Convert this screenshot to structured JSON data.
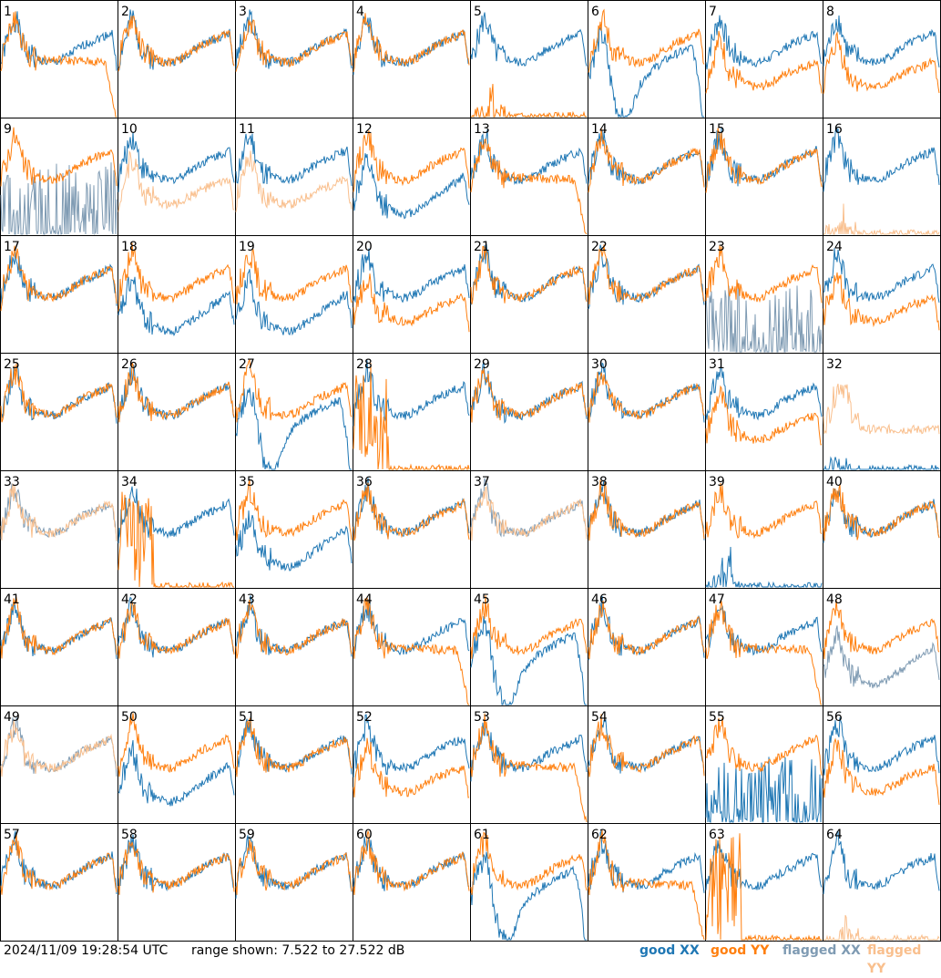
{
  "footer": {
    "timestamp": "2024/11/09 19:28:54 UTC",
    "range_text": "range shown: 7.522 to 27.522 dB"
  },
  "legend": [
    {
      "key": "good_xx",
      "label": "good XX",
      "color": "#1f77b4"
    },
    {
      "key": "good_yy",
      "label": "good YY",
      "color": "#ff7f0e"
    },
    {
      "key": "flagged_xx",
      "label": "flagged XX",
      "color": "#7f9bb3"
    },
    {
      "key": "flagged_yy",
      "label": "flagged YY",
      "color": "#f9bf8d"
    }
  ],
  "chart_data": {
    "type": "line",
    "title": "",
    "ylim": [
      7.522,
      27.522
    ],
    "y_unit": "dB",
    "grid": "8x8 small multiples",
    "panels": [
      {
        "id": 1,
        "xx": "good",
        "yy": "good",
        "shape": "yy_dropoff"
      },
      {
        "id": 2,
        "xx": "good",
        "yy": "good",
        "shape": "normal"
      },
      {
        "id": 3,
        "xx": "good",
        "yy": "good",
        "shape": "normal"
      },
      {
        "id": 4,
        "xx": "good",
        "yy": "good",
        "shape": "normal"
      },
      {
        "id": 5,
        "xx": "good",
        "yy": "good",
        "shape": "yy_low"
      },
      {
        "id": 6,
        "xx": "good",
        "yy": "good",
        "shape": "xx_dip"
      },
      {
        "id": 7,
        "xx": "good",
        "yy": "good",
        "shape": "yy_below"
      },
      {
        "id": 8,
        "xx": "good",
        "yy": "good",
        "shape": "yy_below"
      },
      {
        "id": 9,
        "xx": "flagged",
        "yy": "good",
        "shape": "xx_spikes"
      },
      {
        "id": 10,
        "xx": "good",
        "yy": "flagged",
        "shape": "yy_below"
      },
      {
        "id": 11,
        "xx": "good",
        "yy": "flagged",
        "shape": "yy_below"
      },
      {
        "id": 12,
        "xx": "good",
        "yy": "good",
        "shape": "xx_below"
      },
      {
        "id": 13,
        "xx": "good",
        "yy": "good",
        "shape": "yy_dropoff"
      },
      {
        "id": 14,
        "xx": "good",
        "yy": "good",
        "shape": "normal"
      },
      {
        "id": 15,
        "xx": "good",
        "yy": "good",
        "shape": "normal"
      },
      {
        "id": 16,
        "xx": "good",
        "yy": "flagged",
        "shape": "yy_low"
      },
      {
        "id": 17,
        "xx": "good",
        "yy": "good",
        "shape": "normal"
      },
      {
        "id": 18,
        "xx": "good",
        "yy": "good",
        "shape": "xx_below"
      },
      {
        "id": 19,
        "xx": "good",
        "yy": "good",
        "shape": "xx_below"
      },
      {
        "id": 20,
        "xx": "good",
        "yy": "good",
        "shape": "yy_below"
      },
      {
        "id": 21,
        "xx": "good",
        "yy": "good",
        "shape": "normal"
      },
      {
        "id": 22,
        "xx": "good",
        "yy": "good",
        "shape": "normal"
      },
      {
        "id": 23,
        "xx": "flagged",
        "yy": "good",
        "shape": "xx_spikes"
      },
      {
        "id": 24,
        "xx": "good",
        "yy": "good",
        "shape": "yy_below"
      },
      {
        "id": 25,
        "xx": "good",
        "yy": "good",
        "shape": "normal"
      },
      {
        "id": 26,
        "xx": "good",
        "yy": "good",
        "shape": "normal"
      },
      {
        "id": 27,
        "xx": "good",
        "yy": "good",
        "shape": "xx_dip"
      },
      {
        "id": 28,
        "xx": "good",
        "yy": "good",
        "shape": "yy_spikes"
      },
      {
        "id": 29,
        "xx": "good",
        "yy": "good",
        "shape": "normal"
      },
      {
        "id": 30,
        "xx": "good",
        "yy": "good",
        "shape": "normal"
      },
      {
        "id": 31,
        "xx": "good",
        "yy": "good",
        "shape": "yy_below"
      },
      {
        "id": 32,
        "xx": "good",
        "yy": "flagged",
        "shape": "yy_only"
      },
      {
        "id": 33,
        "xx": "flagged",
        "yy": "flagged",
        "shape": "normal"
      },
      {
        "id": 34,
        "xx": "good",
        "yy": "good",
        "shape": "yy_spikes"
      },
      {
        "id": 35,
        "xx": "good",
        "yy": "good",
        "shape": "xx_below"
      },
      {
        "id": 36,
        "xx": "good",
        "yy": "good",
        "shape": "normal"
      },
      {
        "id": 37,
        "xx": "flagged",
        "yy": "flagged",
        "shape": "normal"
      },
      {
        "id": 38,
        "xx": "good",
        "yy": "good",
        "shape": "normal"
      },
      {
        "id": 39,
        "xx": "good",
        "yy": "good",
        "shape": "xx_low"
      },
      {
        "id": 40,
        "xx": "good",
        "yy": "good",
        "shape": "normal"
      },
      {
        "id": 41,
        "xx": "good",
        "yy": "good",
        "shape": "normal"
      },
      {
        "id": 42,
        "xx": "good",
        "yy": "good",
        "shape": "normal"
      },
      {
        "id": 43,
        "xx": "good",
        "yy": "good",
        "shape": "normal"
      },
      {
        "id": 44,
        "xx": "good",
        "yy": "good",
        "shape": "yy_dropoff"
      },
      {
        "id": 45,
        "xx": "good",
        "yy": "good",
        "shape": "xx_dip"
      },
      {
        "id": 46,
        "xx": "good",
        "yy": "good",
        "shape": "normal"
      },
      {
        "id": 47,
        "xx": "good",
        "yy": "good",
        "shape": "yy_dropoff"
      },
      {
        "id": 48,
        "xx": "flagged",
        "yy": "good",
        "shape": "xx_below"
      },
      {
        "id": 49,
        "xx": "flagged",
        "yy": "flagged",
        "shape": "normal"
      },
      {
        "id": 50,
        "xx": "good",
        "yy": "good",
        "shape": "xx_below"
      },
      {
        "id": 51,
        "xx": "good",
        "yy": "good",
        "shape": "normal"
      },
      {
        "id": 52,
        "xx": "good",
        "yy": "good",
        "shape": "yy_below"
      },
      {
        "id": 53,
        "xx": "good",
        "yy": "good",
        "shape": "yy_dropoff"
      },
      {
        "id": 54,
        "xx": "good",
        "yy": "good",
        "shape": "normal"
      },
      {
        "id": 55,
        "xx": "good",
        "yy": "good",
        "shape": "xx_spikes"
      },
      {
        "id": 56,
        "xx": "good",
        "yy": "good",
        "shape": "yy_below"
      },
      {
        "id": 57,
        "xx": "good",
        "yy": "good",
        "shape": "normal"
      },
      {
        "id": 58,
        "xx": "good",
        "yy": "good",
        "shape": "normal"
      },
      {
        "id": 59,
        "xx": "good",
        "yy": "good",
        "shape": "normal"
      },
      {
        "id": 60,
        "xx": "good",
        "yy": "good",
        "shape": "normal"
      },
      {
        "id": 61,
        "xx": "good",
        "yy": "good",
        "shape": "xx_dip"
      },
      {
        "id": 62,
        "xx": "good",
        "yy": "good",
        "shape": "yy_dropoff"
      },
      {
        "id": 63,
        "xx": "good",
        "yy": "good",
        "shape": "yy_spikes"
      },
      {
        "id": 64,
        "xx": "good",
        "yy": "flagged",
        "shape": "yy_low"
      }
    ]
  }
}
